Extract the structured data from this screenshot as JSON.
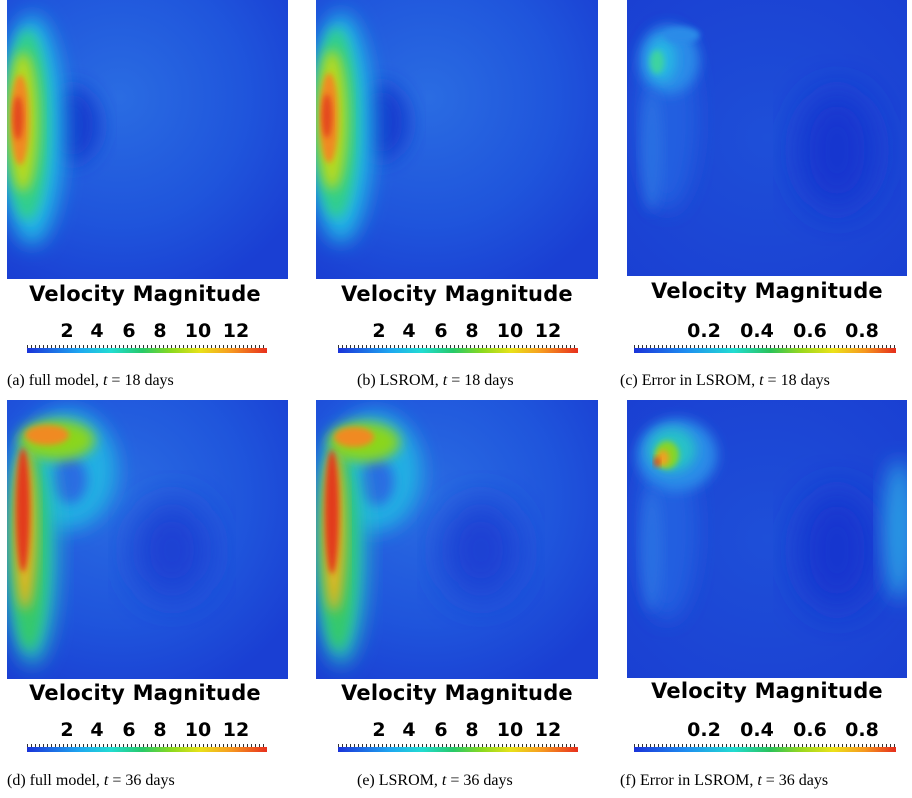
{
  "colorbar_title": "Velocity Magnitude",
  "colorbar_ticks_velocity": [
    "2",
    "4",
    "6",
    "8",
    "10",
    "12"
  ],
  "colorbar_ticks_error": [
    "0.2",
    "0.4",
    "0.6",
    "0.8"
  ],
  "colors": {
    "background_field": "#1f49d6",
    "low": "#1a33d9",
    "high": "#e8301d"
  },
  "panels": [
    {
      "id": "a",
      "caption_prefix": "(a)  full model, ",
      "caption_var": "t",
      "caption_suffix": " = 18 days",
      "scale": "velocity"
    },
    {
      "id": "b",
      "caption_prefix": "(b)  LSROM, ",
      "caption_var": "t",
      "caption_suffix": " = 18 days",
      "scale": "velocity"
    },
    {
      "id": "c",
      "caption_prefix": "(c)  Error in LSROM, ",
      "caption_var": "t",
      "caption_suffix": " = 18 days",
      "scale": "error"
    },
    {
      "id": "d",
      "caption_prefix": "(d)  full model, ",
      "caption_var": "t",
      "caption_suffix": " = 36 days",
      "scale": "velocity"
    },
    {
      "id": "e",
      "caption_prefix": "(e)  LSROM, ",
      "caption_var": "t",
      "caption_suffix": " = 36 days",
      "scale": "velocity"
    },
    {
      "id": "f",
      "caption_prefix": "(f)  Error in LSROM, ",
      "caption_var": "t",
      "caption_suffix": " = 36 days",
      "scale": "error"
    }
  ]
}
